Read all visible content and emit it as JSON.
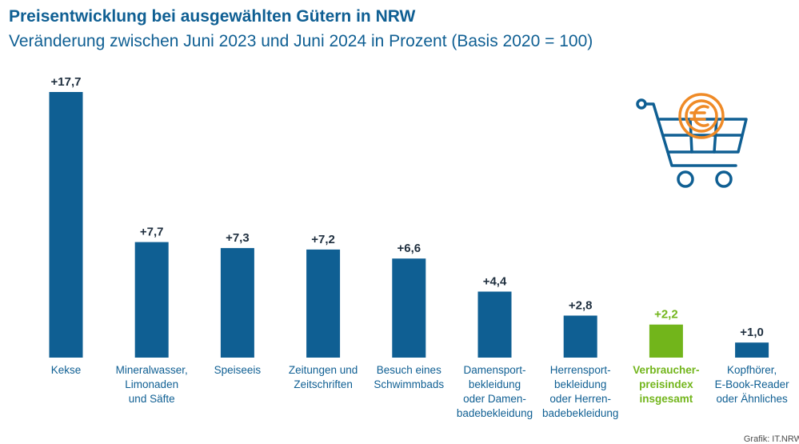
{
  "title": "Preisentwicklung bei ausgewählten Gütern in NRW",
  "subtitle": "Veränderung zwischen Juni 2023 und Juni 2024 in Prozent (Basis 2020 = 100)",
  "source": "Grafik: IT.NRW",
  "icon": "shopping-cart-euro-icon",
  "colors": {
    "bar": "#0f5f93",
    "highlight": "#72b51b",
    "text": "#0f5f93",
    "icon_cart": "#0f5f93",
    "icon_coin": "#ef8a26"
  },
  "chart_data": {
    "type": "bar",
    "categories": [
      [
        "Kekse"
      ],
      [
        "Mineralwasser,",
        "Limonaden",
        "und Säfte"
      ],
      [
        "Speiseeis"
      ],
      [
        "Zeitungen und",
        "Zeitschriften"
      ],
      [
        "Besuch eines",
        "Schwimmbads"
      ],
      [
        "Damensport-",
        "bekleidung",
        "oder Damen-",
        "badebekleidung"
      ],
      [
        "Herrensport-",
        "bekleidung",
        "oder Herren-",
        "badebekleidung"
      ],
      [
        "Verbraucher-",
        "preisindex",
        "insgesamt"
      ],
      [
        "Kopfhörer,",
        "E-Book-Reader",
        "oder Ähnliches"
      ]
    ],
    "values": [
      17.7,
      7.7,
      7.3,
      7.2,
      6.6,
      4.4,
      2.8,
      2.2,
      1.0
    ],
    "value_labels": [
      "+17,7",
      "+7,7",
      "+7,3",
      "+7,2",
      "+6,6",
      "+4,4",
      "+2,8",
      "+2,2",
      "+1,0"
    ],
    "highlight_index": 7,
    "xlabel": "",
    "ylabel": "",
    "ylim": [
      0,
      17.7
    ],
    "grid": false,
    "legend": "none"
  }
}
